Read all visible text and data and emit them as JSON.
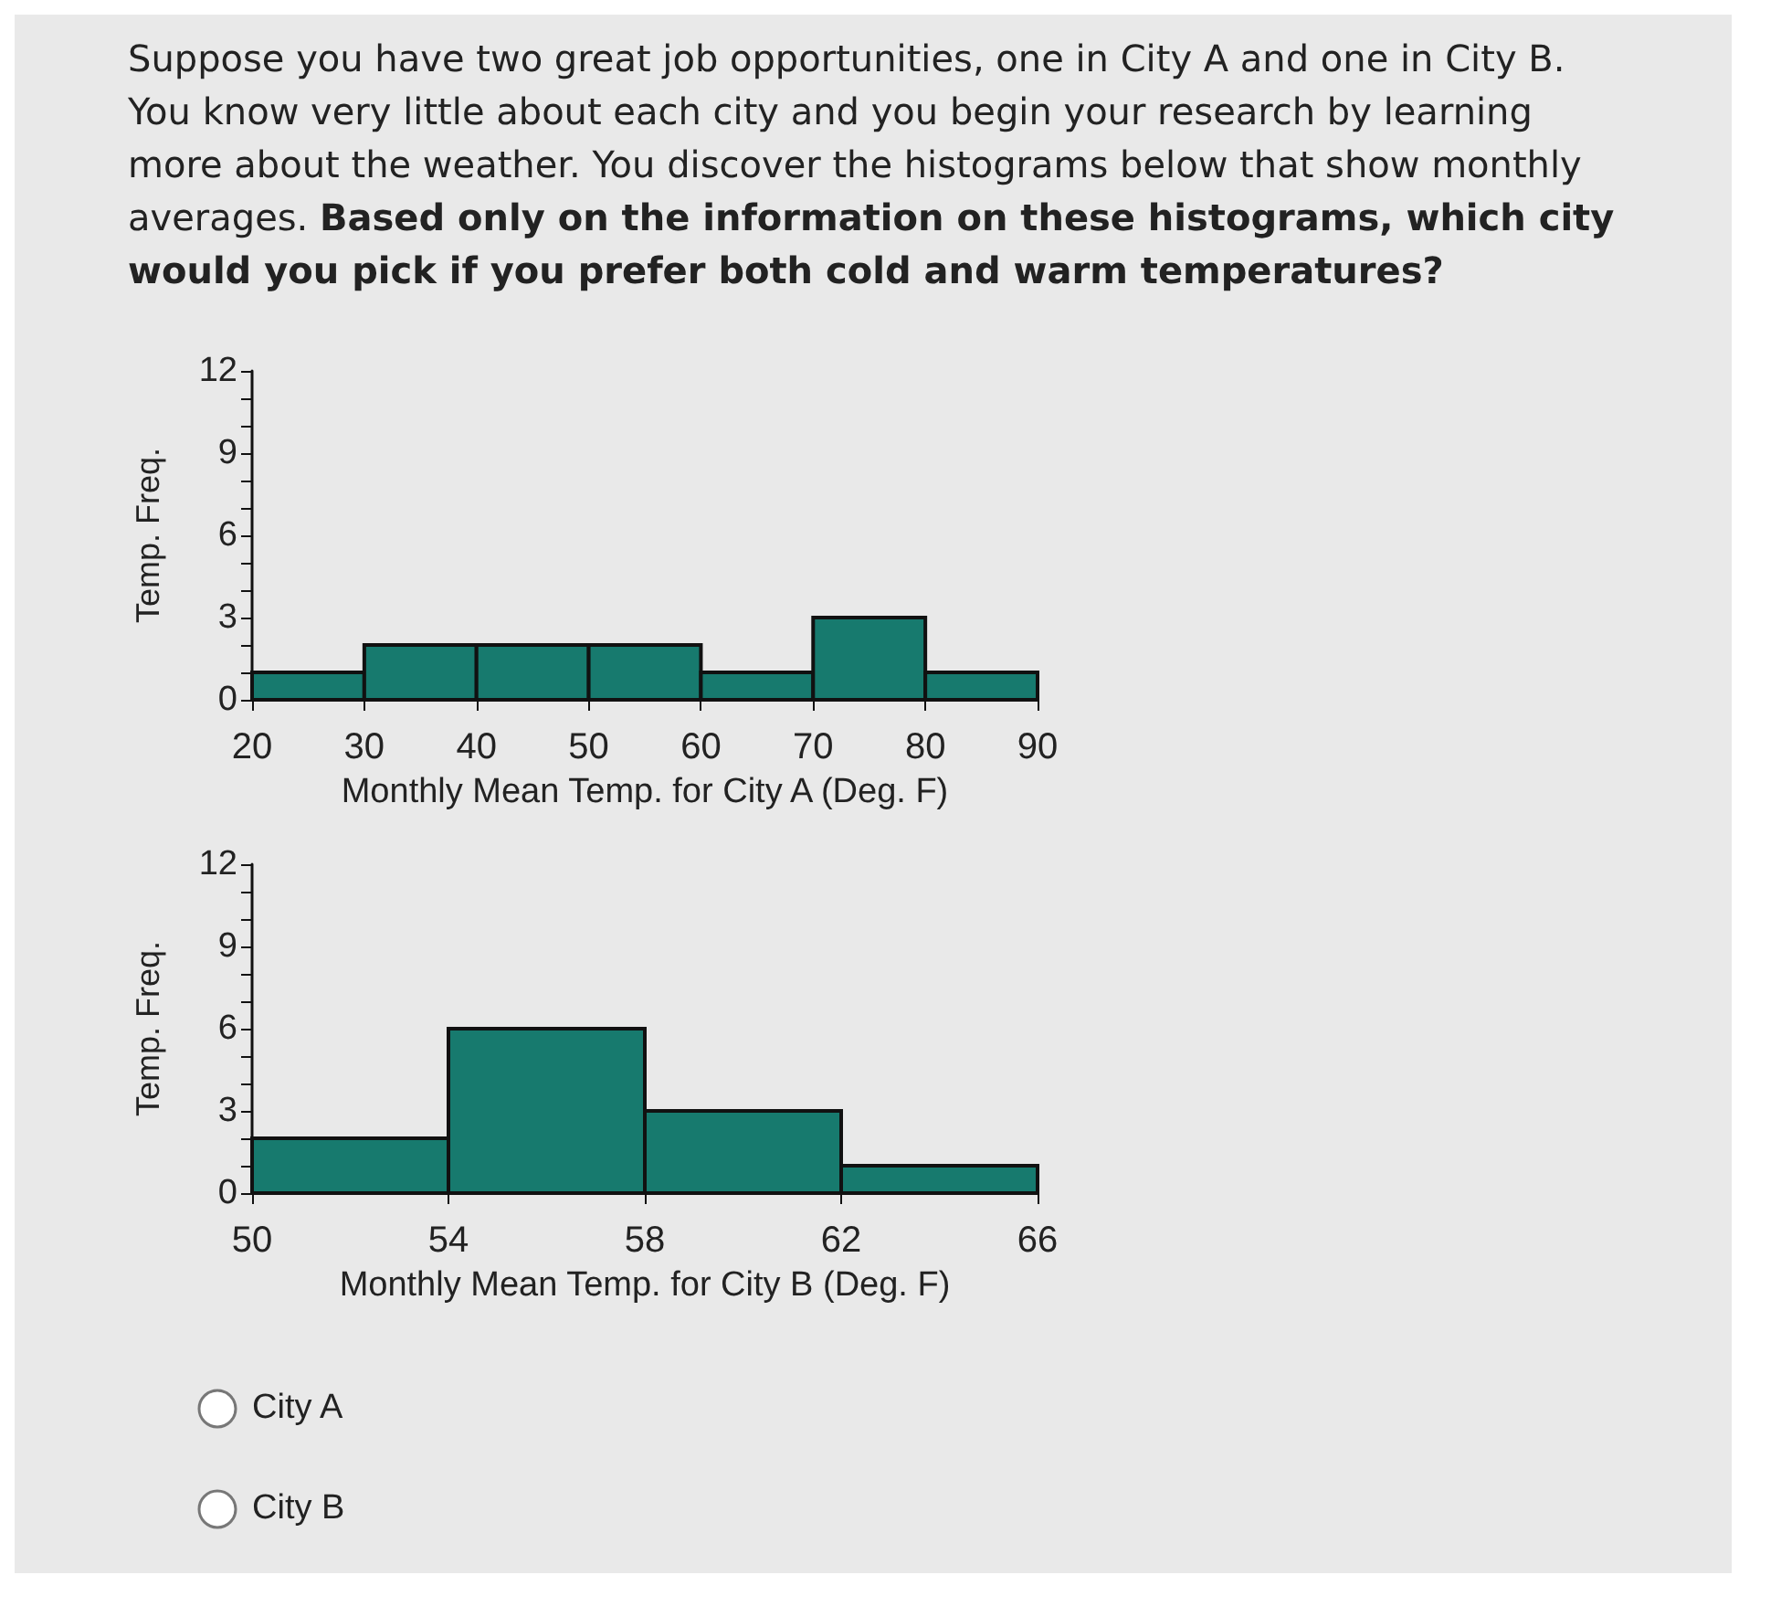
{
  "chart_data": [
    {
      "type": "histogram",
      "xlabel": "Monthly Mean Temp. for City A (Deg. F)",
      "ylabel": "Temp. Freq.",
      "bins": [
        20,
        30,
        40,
        50,
        60,
        70,
        80,
        90
      ],
      "values": [
        1,
        2,
        2,
        2,
        1,
        3,
        1
      ],
      "color": "#177a6e",
      "xlim": [
        20,
        90
      ],
      "xticks": [
        20,
        30,
        40,
        50,
        60,
        70,
        80,
        90
      ],
      "ylim": [
        0,
        12
      ],
      "yticks": [
        0,
        {
          "value": 1,
          "label": null
        },
        {
          "value": 2,
          "label": null
        },
        3,
        {
          "value": 4,
          "label": null
        },
        {
          "value": 5,
          "label": null
        },
        6,
        {
          "value": 7,
          "label": null
        },
        {
          "value": 8,
          "label": null
        },
        9,
        {
          "value": 10,
          "label": null
        },
        {
          "value": 11,
          "label": null
        },
        12
      ],
      "grid": false,
      "annotations": [
        "Suppose you have two great job opportunities, one in City A and one in City B. You know very little about each city and you begin your research by learning more about the weather. You discover the histograms below that show monthly averages.",
        "Based only on the information on these histograms, which city would you pick if you prefer both cold and warm temperatures?"
      ]
    },
    {
      "type": "histogram",
      "xlabel": "Monthly Mean Temp. for City B (Deg. F)",
      "ylabel": "Temp. Freq.",
      "bins": [
        50,
        54,
        58,
        62,
        66
      ],
      "values": [
        2,
        6,
        3,
        1
      ],
      "color": "#177a6e",
      "xlim": [
        50,
        66
      ],
      "xticks": [
        50,
        54,
        58,
        62,
        66
      ],
      "ylim": [
        0,
        12
      ],
      "yticks": [
        0,
        {
          "value": 1,
          "label": null
        },
        {
          "value": 2,
          "label": null
        },
        3,
        {
          "value": 4,
          "label": null
        },
        {
          "value": 5,
          "label": null
        },
        6,
        {
          "value": 7,
          "label": null
        },
        {
          "value": 8,
          "label": null
        },
        9,
        {
          "value": 10,
          "label": null
        },
        {
          "value": 11,
          "label": null
        },
        12
      ],
      "grid": false,
      "annotations": [
        "City A",
        "City B"
      ]
    }
  ]
}
